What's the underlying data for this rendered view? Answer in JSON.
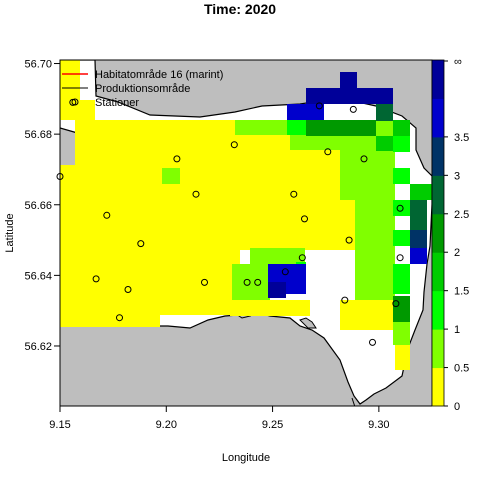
{
  "title": "Time: 2020",
  "x_axis": {
    "label": "Longitude",
    "ticks": [
      "9.15",
      "9.20",
      "9.25",
      "9.30"
    ],
    "range": [
      9.15,
      9.325
    ]
  },
  "y_axis": {
    "label": "Latitude",
    "ticks": [
      "56.62",
      "56.64",
      "56.66",
      "56.68",
      "56.70"
    ],
    "range": [
      56.603,
      56.701
    ]
  },
  "legend": {
    "items": [
      {
        "label": "Habitatområde 16 (marint)",
        "color": "#ff0000",
        "symbol": "line"
      },
      {
        "label": "Produktionsområde",
        "color": "#000000",
        "symbol": "line"
      },
      {
        "label": "Stationer",
        "color": "#000000",
        "symbol": "circle"
      }
    ]
  },
  "colorbar": {
    "ticks": [
      "0",
      "0.5",
      "1",
      "1.5",
      "2",
      "2.5",
      "3",
      "3.5",
      "∞"
    ],
    "colors": [
      "#ffff00",
      "#80ff00",
      "#00ff00",
      "#00cc00",
      "#009900",
      "#006633",
      "#003366",
      "#0000cc",
      "#000099"
    ]
  },
  "colors": {
    "land": "#bebebe",
    "water": "#ffffff"
  },
  "stations": [
    [
      9.15,
      56.668
    ],
    [
      9.156,
      56.689
    ],
    [
      9.172,
      56.657
    ],
    [
      9.188,
      56.649
    ],
    [
      9.167,
      56.639
    ],
    [
      9.182,
      56.636
    ],
    [
      9.178,
      56.628
    ],
    [
      9.205,
      56.673
    ],
    [
      9.214,
      56.663
    ],
    [
      9.232,
      56.677
    ],
    [
      9.26,
      56.663
    ],
    [
      9.265,
      56.656
    ],
    [
      9.264,
      56.645
    ],
    [
      9.256,
      56.641
    ],
    [
      9.243,
      56.638
    ],
    [
      9.238,
      56.638
    ],
    [
      9.272,
      56.688
    ],
    [
      9.288,
      56.687
    ],
    [
      9.276,
      56.675
    ],
    [
      9.293,
      56.673
    ],
    [
      9.31,
      56.659
    ],
    [
      9.286,
      56.65
    ],
    [
      9.31,
      56.645
    ],
    [
      9.284,
      56.633
    ],
    [
      9.308,
      56.632
    ],
    [
      9.297,
      56.621
    ],
    [
      9.218,
      56.638
    ]
  ]
}
